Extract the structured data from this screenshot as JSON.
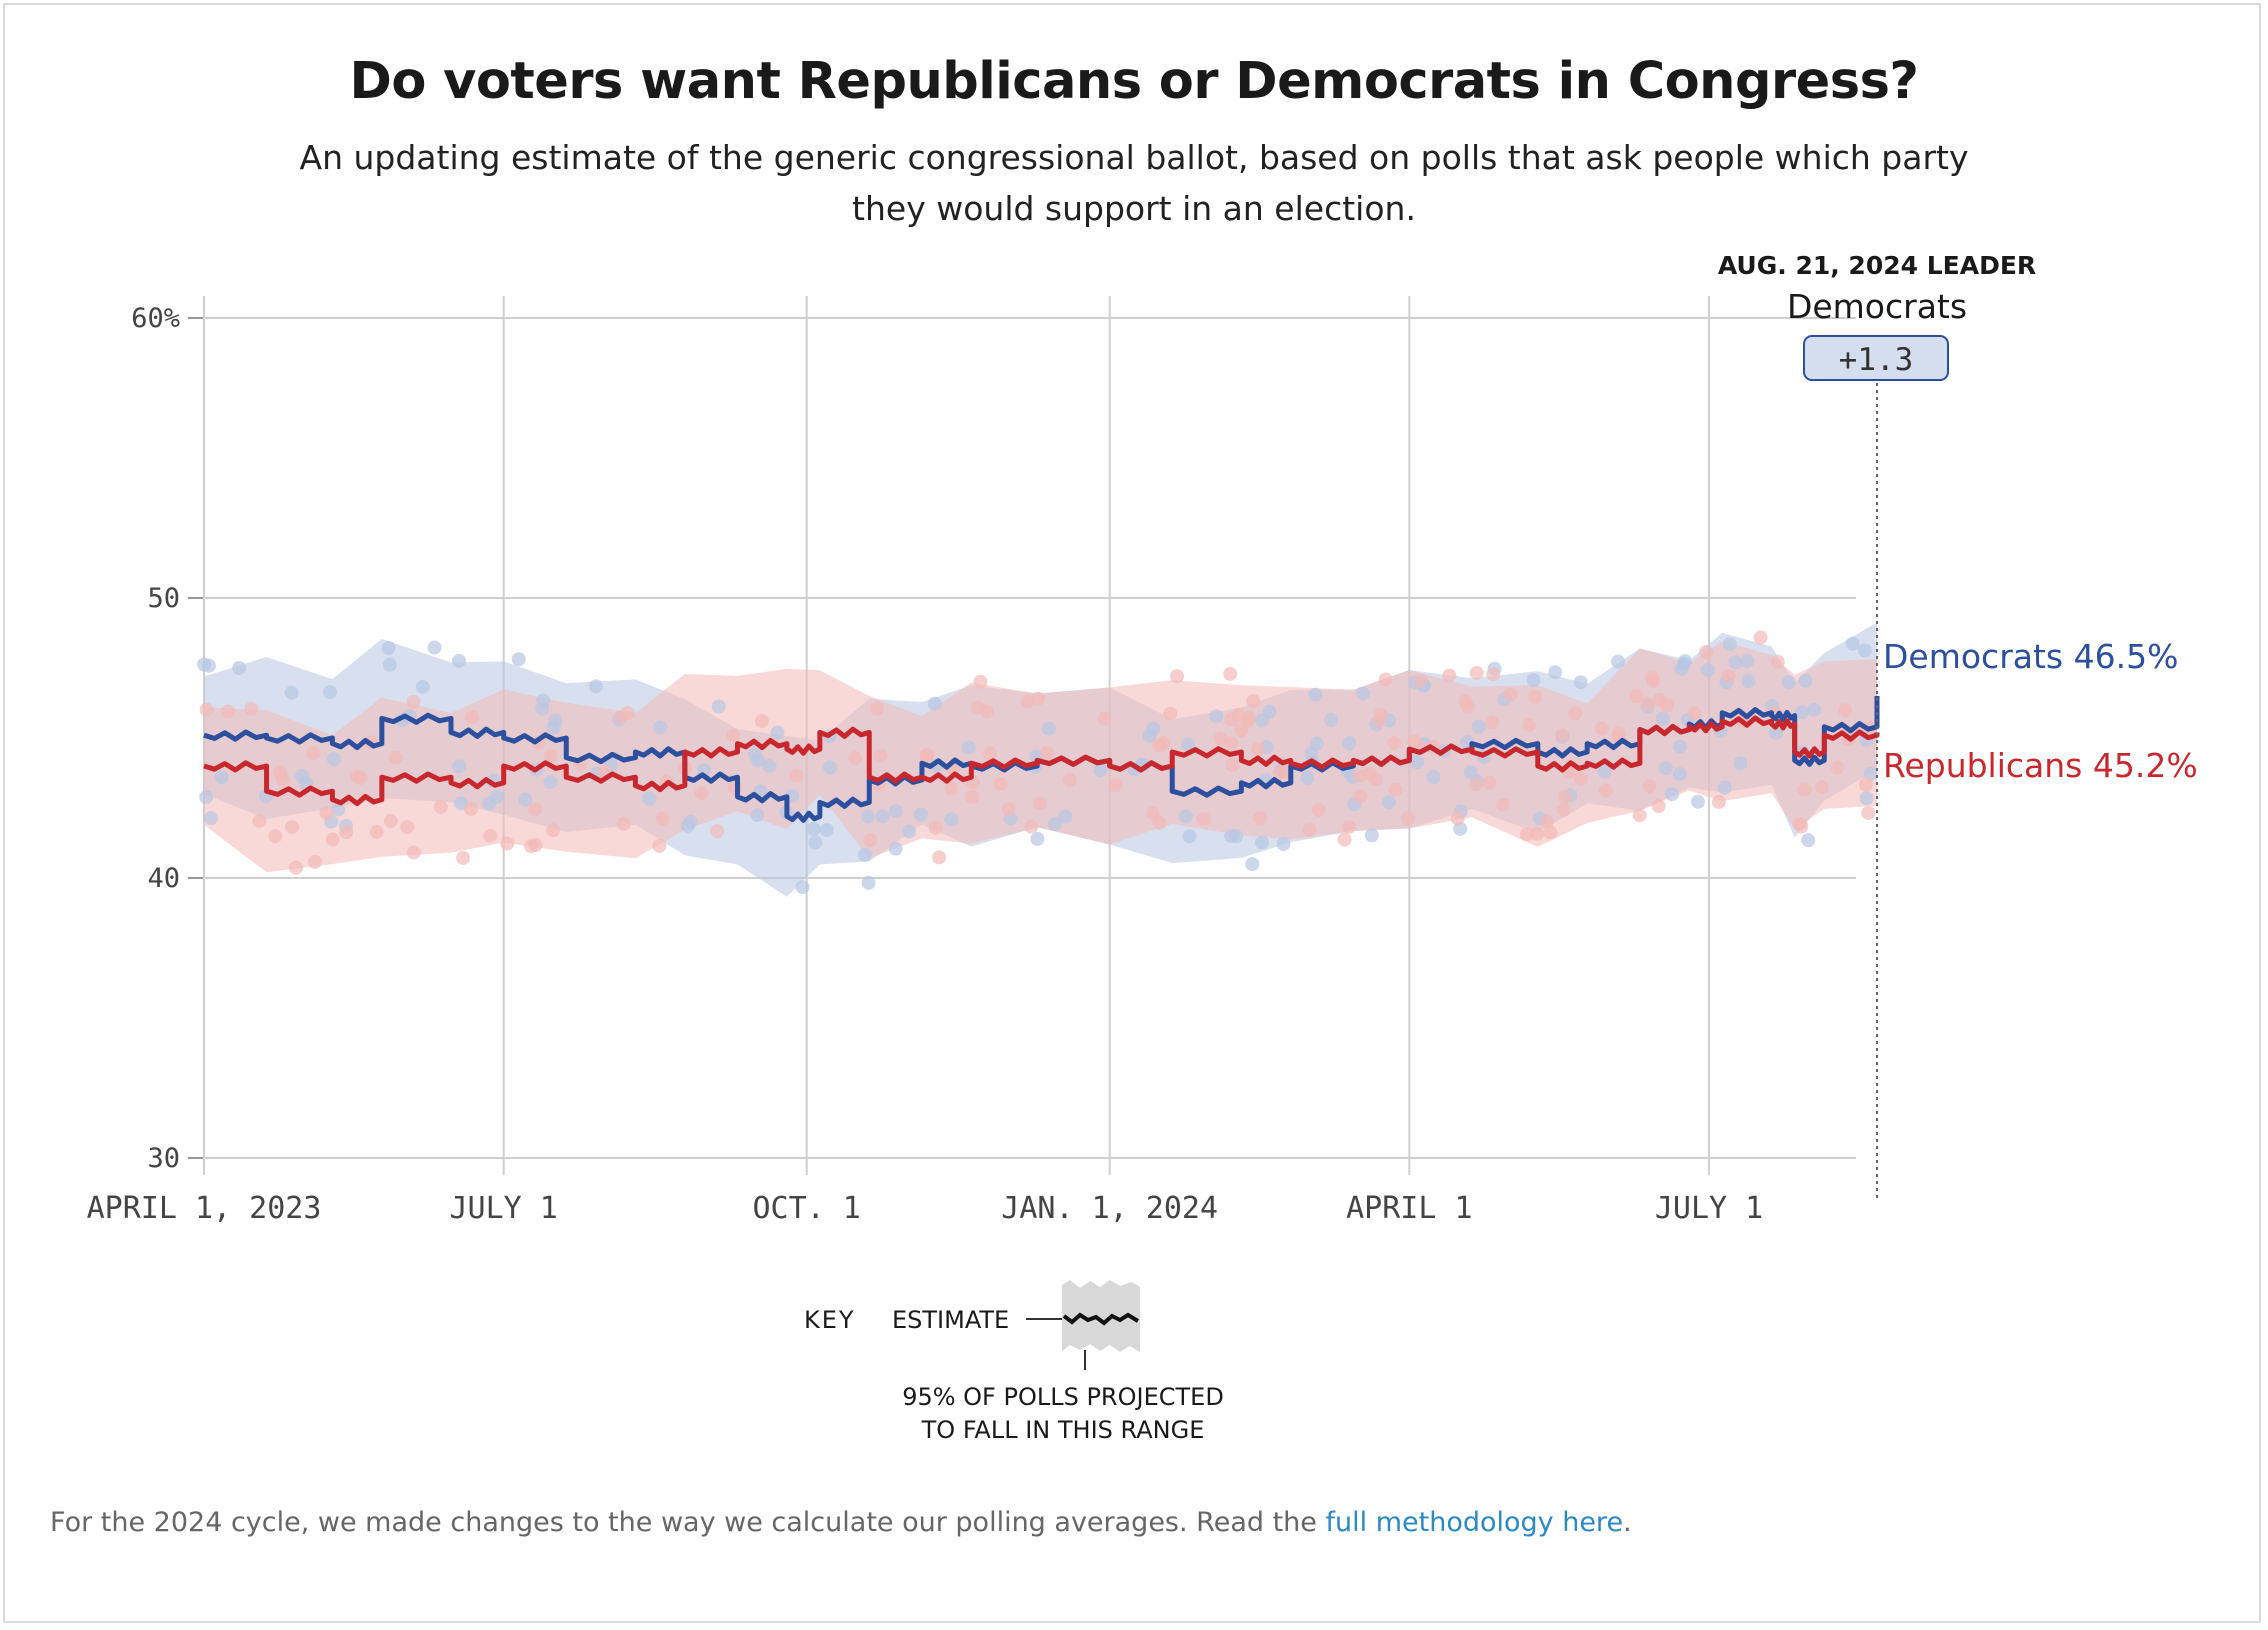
{
  "header": {
    "title": "Do voters want Republicans or Democrats in Congress?",
    "subtitle": "An updating estimate of the generic congressional ballot, based on polls that ask people which party they would support in an election."
  },
  "leader": {
    "heading": "AUG. 21, 2024 LEADER",
    "party": "Democrats",
    "margin": "+1.3"
  },
  "end_labels": {
    "dem": "Democrats 46.5%",
    "rep": "Republicans 45.2%"
  },
  "key": {
    "label": "KEY",
    "estimate": "ESTIMATE",
    "range_line1": "95% OF POLLS PROJECTED",
    "range_line2": "TO FALL IN THIS RANGE"
  },
  "footer": {
    "text": "For the 2024 cycle, we made changes to the way we calculate our polling averages. Read the ",
    "link": "full methodology here",
    "end": "."
  },
  "colors": {
    "dem": "#2c4f9e",
    "rep": "#c8282d",
    "dem_light": "#b8c6e4",
    "rep_light": "#f2b9b8",
    "leader_box": "#d5deef"
  },
  "chart_data": {
    "type": "line",
    "x_tick_labels": [
      "APRIL 1, 2023",
      "JULY 1",
      "OCT. 1",
      "JAN. 1, 2024",
      "APRIL 1",
      "JULY 1"
    ],
    "x_ticks": [
      "2023-04-01",
      "2023-07-01",
      "2023-10-01",
      "2024-01-01",
      "2024-04-01",
      "2024-07-01"
    ],
    "x_range": [
      "2023-04-01",
      "2024-08-21"
    ],
    "y_tick_labels": [
      "60%",
      "50",
      "40",
      "30"
    ],
    "y_ticks": [
      60,
      50,
      40,
      30
    ],
    "ylim": [
      30,
      60
    ],
    "grid": true,
    "series": [
      {
        "name": "Democrats",
        "color": "#2c4f9e",
        "x": [
          "2023-04-01",
          "2023-04-20",
          "2023-05-10",
          "2023-05-25",
          "2023-06-15",
          "2023-07-01",
          "2023-07-20",
          "2023-08-10",
          "2023-08-25",
          "2023-09-10",
          "2023-09-25",
          "2023-10-05",
          "2023-10-20",
          "2023-11-05",
          "2023-11-20",
          "2023-12-10",
          "2024-01-01",
          "2024-01-20",
          "2024-02-10",
          "2024-02-25",
          "2024-03-15",
          "2024-04-01",
          "2024-04-20",
          "2024-05-10",
          "2024-05-25",
          "2024-06-10",
          "2024-06-25",
          "2024-07-05",
          "2024-07-20",
          "2024-07-27",
          "2024-08-05",
          "2024-08-21"
        ],
        "values": [
          45.1,
          45.0,
          44.8,
          45.7,
          45.2,
          45.0,
          44.3,
          44.5,
          43.6,
          42.9,
          42.2,
          42.7,
          43.5,
          44.1,
          44.0,
          44.2,
          44.0,
          43.1,
          43.4,
          44.0,
          44.2,
          44.6,
          44.8,
          44.5,
          44.8,
          45.3,
          45.5,
          45.9,
          45.8,
          44.2,
          45.4,
          46.5
        ]
      },
      {
        "name": "Republicans",
        "color": "#c8282d",
        "x": [
          "2023-04-01",
          "2023-04-20",
          "2023-05-10",
          "2023-05-25",
          "2023-06-15",
          "2023-07-01",
          "2023-07-20",
          "2023-08-10",
          "2023-08-25",
          "2023-09-10",
          "2023-09-25",
          "2023-10-05",
          "2023-10-20",
          "2023-11-05",
          "2023-11-20",
          "2023-12-10",
          "2024-01-01",
          "2024-01-20",
          "2024-02-10",
          "2024-02-25",
          "2024-03-15",
          "2024-04-01",
          "2024-04-20",
          "2024-05-10",
          "2024-05-25",
          "2024-06-10",
          "2024-06-25",
          "2024-07-05",
          "2024-07-20",
          "2024-07-27",
          "2024-08-05",
          "2024-08-21"
        ],
        "values": [
          44.0,
          43.1,
          42.8,
          43.6,
          43.4,
          44.0,
          43.6,
          43.3,
          44.5,
          44.8,
          44.6,
          45.2,
          43.6,
          43.6,
          44.1,
          44.2,
          44.0,
          44.5,
          44.2,
          44.1,
          44.2,
          44.6,
          44.5,
          44.0,
          44.1,
          45.3,
          45.4,
          45.6,
          45.5,
          44.5,
          45.1,
          45.2
        ]
      }
    ]
  }
}
